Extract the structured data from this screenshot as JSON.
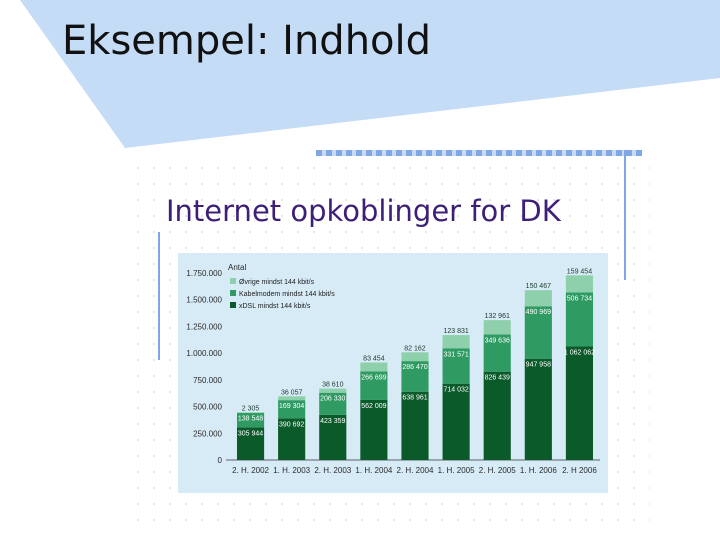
{
  "slide": {
    "title": "Eksempel: Indhold",
    "subtitle": "Internet opkoblinger for DK"
  },
  "colors": {
    "banner": "#c5dcf7",
    "subtitle": "#3d1f78",
    "chart_bg": "#d6ebf6",
    "series_dark": "#0b5a2a",
    "series_mid": "#2f9b63",
    "series_light": "#8fd0ac"
  },
  "chart_data": {
    "type": "bar",
    "stacked": true,
    "ylabel": "Antal",
    "ylim": [
      0,
      1750000
    ],
    "yticks": [
      "0",
      "250.000",
      "500.000",
      "750.000",
      "1.000.000",
      "1.250.000",
      "1.500.000",
      "1.750.000"
    ],
    "categories": [
      "2. H. 2002",
      "1. H. 2003",
      "2. H. 2003",
      "1. H. 2004",
      "2. H. 2004",
      "1. H. 2005",
      "2. H. 2005",
      "1. H. 2006",
      "2. H 2006"
    ],
    "legend_position": "top-left",
    "grid": false,
    "series": [
      {
        "name": "xDSL mindst 144 kbit/s",
        "color": "#0b5a2a",
        "values": [
          305944,
          390692,
          423359,
          562009,
          638961,
          714032,
          826439,
          947958,
          1062062
        ],
        "labels": [
          "305 944",
          "390 692",
          "423 359",
          "562 009",
          "638 961",
          "714 032",
          "826 439",
          "947 958",
          "1 062 062"
        ]
      },
      {
        "name": "Kabelmodem mindst 144 kbit/s",
        "color": "#2f9b63",
        "values": [
          138548,
          169304,
          206330,
          266699,
          286470,
          331571,
          349636,
          490969,
          506734
        ],
        "labels": [
          "138 548",
          "169 304",
          "206 330",
          "266 699",
          "286 470",
          "331 571",
          "349 636",
          "490 969",
          "506 734"
        ]
      },
      {
        "name": "Øvrige mindst 144 kbit/s",
        "color": "#8fd0ac",
        "values": [
          2305,
          36057,
          38610,
          83454,
          82162,
          123831,
          132961,
          150467,
          159454
        ],
        "labels": [
          "2 305",
          "36 057",
          "38 610",
          "83 454",
          "82 162",
          "123 831",
          "132 961",
          "150 467",
          "159 454"
        ]
      }
    ]
  }
}
